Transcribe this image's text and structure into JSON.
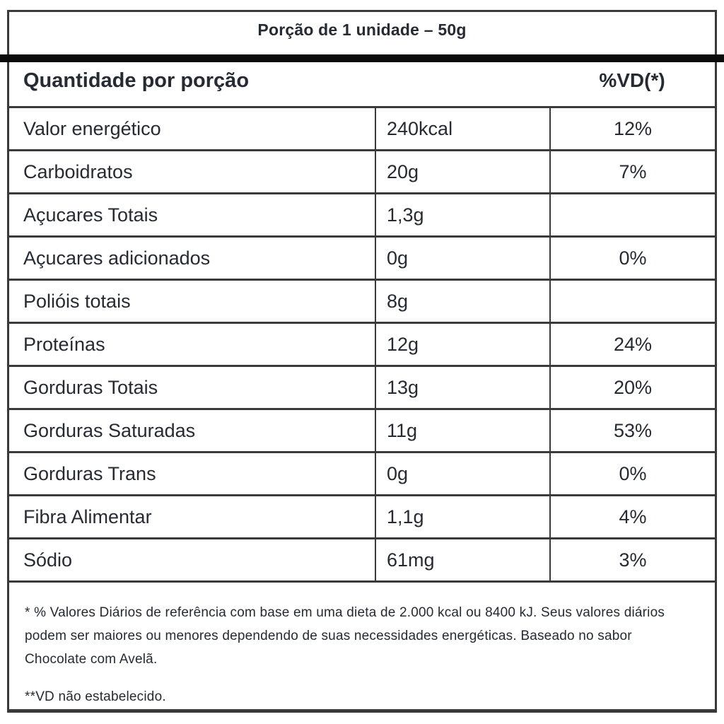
{
  "header": {
    "serving": "Porção de 1 unidade – 50g"
  },
  "columns": {
    "amount_header": "Quantidade por porção",
    "dv_header": "%VD(*)"
  },
  "rows": [
    {
      "label": "Valor energético",
      "amount": "240kcal",
      "dv": "12%"
    },
    {
      "label": "Carboidratos",
      "amount": "20g",
      "dv": "7%"
    },
    {
      "label": "Açucares Totais",
      "amount": "1,3g",
      "dv": ""
    },
    {
      "label": "Açucares adicionados",
      "amount": "0g",
      "dv": "0%"
    },
    {
      "label": "Polióis totais",
      "amount": "8g",
      "dv": ""
    },
    {
      "label": "Proteínas",
      "amount": "12g",
      "dv": "24%"
    },
    {
      "label": "Gorduras Totais",
      "amount": "13g",
      "dv": "20%"
    },
    {
      "label": "Gorduras Saturadas",
      "amount": "11g",
      "dv": "53%"
    },
    {
      "label": "Gorduras Trans",
      "amount": "0g",
      "dv": "0%"
    },
    {
      "label": "Fibra Alimentar",
      "amount": "1,1g",
      "dv": "4%"
    },
    {
      "label": "Sódio",
      "amount": "61mg",
      "dv": "3%"
    }
  ],
  "footnotes": {
    "dv_note": "* % Valores Diários de referência com base em uma dieta de 2.000 kcal ou 8400 kJ. Seus valores diários podem ser maiores ou menores dependendo de suas necessidades energéticas. Baseado no sabor Chocolate com Avelã.",
    "nd_note": "**VD não estabelecido."
  },
  "colors": {
    "ink": "#262a33",
    "border": "#3a3a3c",
    "bar": "#0b0b0b",
    "background": "#ffffff"
  }
}
